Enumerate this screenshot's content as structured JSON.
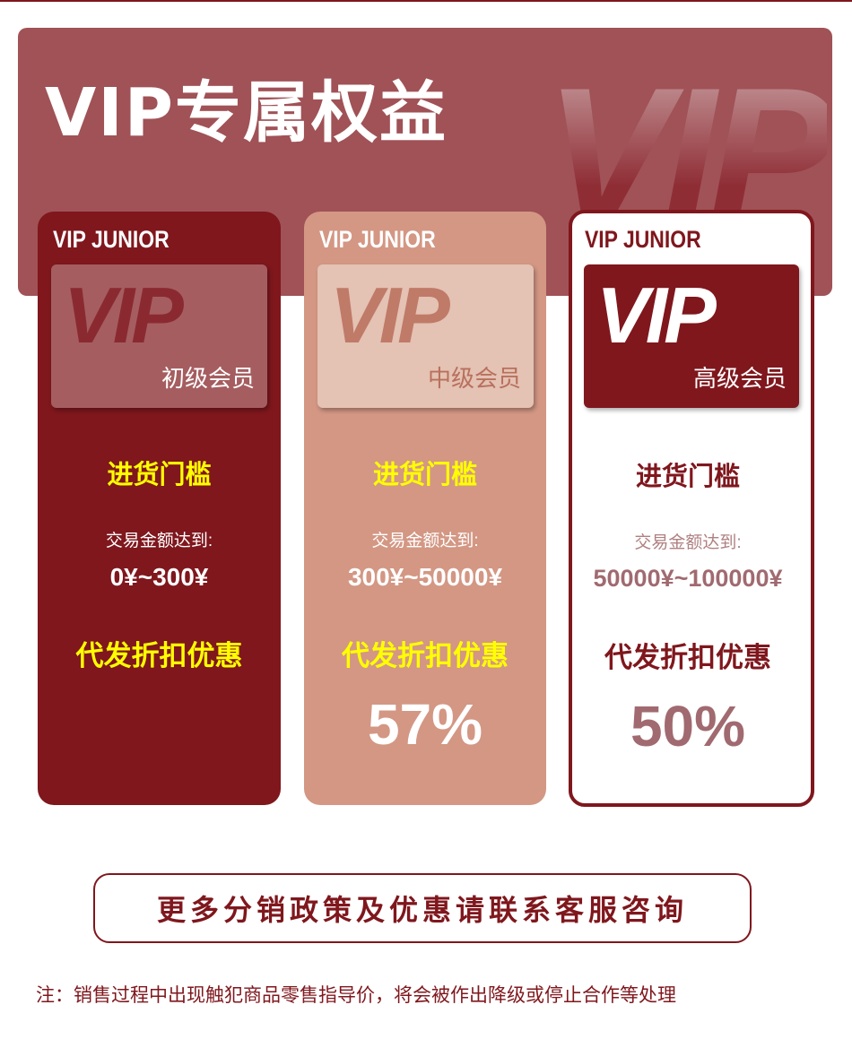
{
  "header": {
    "title": "VIP专属权益",
    "watermark": "VIP"
  },
  "tiers": [
    {
      "tag": "VIP JUNIOR",
      "card_logo": "VIP",
      "level": "初级会员",
      "threshold_label": "进货门槛",
      "amount_label": "交易金额达到:",
      "range": "0¥~300¥",
      "discount_label": "代发折扣优惠",
      "discount": ""
    },
    {
      "tag": "VIP JUNIOR",
      "card_logo": "VIP",
      "level": "中级会员",
      "threshold_label": "进货门槛",
      "amount_label": "交易金额达到:",
      "range": "300¥~50000¥",
      "discount_label": "代发折扣优惠",
      "discount": "57%"
    },
    {
      "tag": "VIP JUNIOR",
      "card_logo": "VIP",
      "level": "高级会员",
      "threshold_label": "进货门槛",
      "amount_label": "交易金额达到:",
      "range": "50000¥~100000¥",
      "discount_label": "代发折扣优惠",
      "discount": "50%"
    }
  ],
  "contact_button": "更多分销政策及优惠请联系客服咨询",
  "note": "注：销售过程中出现触犯商品零售指导价，将会被作出降级或停止合作等处理",
  "colors": {
    "brand": "#7f171d",
    "banner": "#a05257",
    "mid": "#d39784",
    "highlight": "#ffff00"
  }
}
